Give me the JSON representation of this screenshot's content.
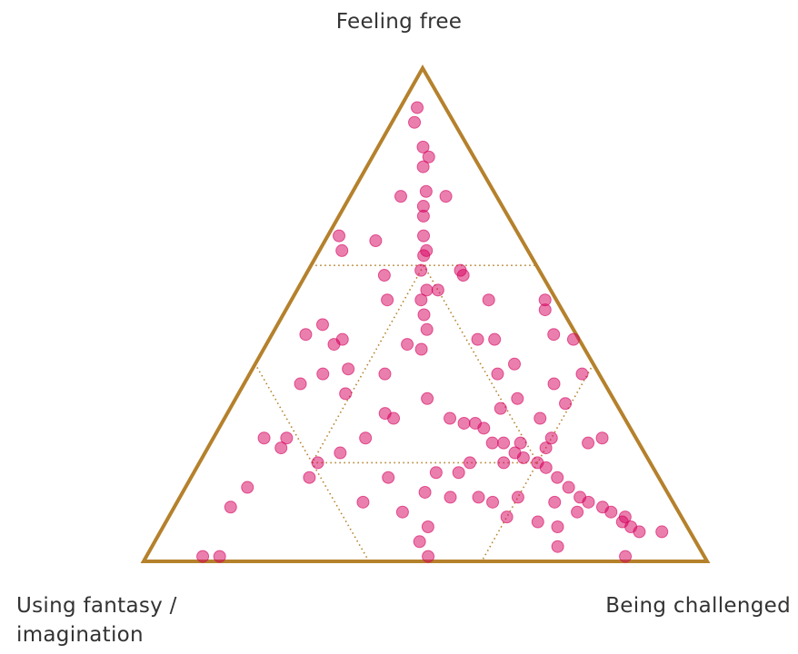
{
  "chart_data": {
    "type": "ternary",
    "axes": {
      "top": "Feeling free",
      "left": "Using fantasy / imagination",
      "right": "Being challenged"
    },
    "ticks": [
      0.2,
      0.6
    ],
    "color": "#d6005e",
    "edge_color": "#b5812c",
    "free": [
      0.92,
      0.89,
      0.84,
      0.8,
      0.75,
      0.72,
      0.7,
      0.66,
      0.62,
      0.59,
      0.55,
      0.5,
      0.47,
      0.43,
      0.33,
      0.74,
      0.74,
      0.66,
      0.65,
      0.63,
      0.58,
      0.53,
      0.46,
      0.48,
      0.44,
      0.45,
      0.39,
      0.38,
      0.36,
      0.34,
      0.38,
      0.44,
      0.3,
      0.29,
      0.25,
      0.22,
      0.25,
      0.25,
      0.23,
      0.2,
      0.17,
      0.15,
      0.11,
      0.01,
      0.01,
      0.12,
      0.17,
      0.1,
      0.04,
      0.01,
      0.14,
      0.07,
      0.18,
      0.13,
      0.13,
      0.18,
      0.2,
      0.58,
      0.55,
      0.53,
      0.45,
      0.45,
      0.38,
      0.4,
      0.53,
      0.51,
      0.46,
      0.45,
      0.38,
      0.36,
      0.32,
      0.33,
      0.31,
      0.29,
      0.25,
      0.25,
      0.24,
      0.29,
      0.28,
      0.28,
      0.27,
      0.24,
      0.24,
      0.22,
      0.21,
      0.2,
      0.19,
      0.17,
      0.15,
      0.13,
      0.12,
      0.11,
      0.1,
      0.08,
      0.07,
      0.09,
      0.2,
      0.24,
      0.12,
      0.09,
      0.13,
      0.08,
      0.07,
      0.03,
      0.1,
      0.01,
      0.06,
      0.06,
      0.23,
      0.12,
      0.82,
      0.63,
      0.59,
      0.53
    ],
    "fantasy": [
      0.05,
      0.07,
      0.08,
      0.1,
      0.12,
      0.14,
      0.15,
      0.17,
      0.19,
      0.21,
      0.22,
      0.25,
      0.26,
      0.29,
      0.33,
      0.17,
      0.09,
      0.32,
      0.26,
      0.33,
      0.28,
      0.3,
      0.48,
      0.44,
      0.44,
      0.42,
      0.44,
      0.49,
      0.54,
      0.47,
      0.38,
      0.31,
      0.42,
      0.41,
      0.48,
      0.54,
      0.62,
      0.66,
      0.64,
      0.59,
      0.62,
      0.74,
      0.79,
      0.89,
      0.86,
      0.55,
      0.48,
      0.49,
      0.49,
      0.49,
      0.43,
      0.46,
      0.39,
      0.39,
      0.34,
      0.35,
      0.32,
      0.14,
      0.2,
      0.12,
      0.18,
      0.15,
      0.18,
      0.14,
      0.02,
      0.03,
      0.04,
      0.01,
      0.03,
      0.09,
      0.09,
      0.17,
      0.21,
      0.15,
      0.15,
      0.06,
      0.09,
      0.31,
      0.29,
      0.27,
      0.26,
      0.26,
      0.24,
      0.23,
      0.22,
      0.2,
      0.19,
      0.18,
      0.17,
      0.16,
      0.15,
      0.13,
      0.12,
      0.11,
      0.1,
      0.1,
      0.26,
      0.21,
      0.32,
      0.31,
      0.27,
      0.26,
      0.23,
      0.25,
      0.18,
      0.14,
      0.09,
      0.05,
      0.17,
      0.21,
      0.08,
      0.18,
      0.14,
      0.24
    ],
    "challenged": [
      0.03,
      0.04,
      0.08,
      0.1,
      0.13,
      0.14,
      0.15,
      0.17,
      0.19,
      0.2,
      0.23,
      0.25,
      0.27,
      0.28,
      0.34,
      0.09,
      0.17,
      0.02,
      0.09,
      0.04,
      0.14,
      0.17,
      0.06,
      0.08,
      0.12,
      0.13,
      0.17,
      0.13,
      0.1,
      0.19,
      0.24,
      0.25,
      0.28,
      0.3,
      0.27,
      0.24,
      0.13,
      0.09,
      0.13,
      0.21,
      0.21,
      0.11,
      0.1,
      0.1,
      0.13,
      0.33,
      0.35,
      0.41,
      0.47,
      0.5,
      0.43,
      0.47,
      0.43,
      0.48,
      0.53,
      0.47,
      0.48,
      0.28,
      0.25,
      0.35,
      0.37,
      0.4,
      0.44,
      0.46,
      0.45,
      0.46,
      0.5,
      0.54,
      0.59,
      0.55,
      0.59,
      0.5,
      0.48,
      0.56,
      0.6,
      0.69,
      0.67,
      0.4,
      0.43,
      0.45,
      0.47,
      0.5,
      0.52,
      0.55,
      0.57,
      0.6,
      0.62,
      0.65,
      0.68,
      0.71,
      0.73,
      0.76,
      0.78,
      0.81,
      0.83,
      0.81,
      0.54,
      0.55,
      0.56,
      0.6,
      0.6,
      0.66,
      0.7,
      0.72,
      0.72,
      0.85,
      0.85,
      0.89,
      0.6,
      0.67,
      0.1,
      0.19,
      0.27,
      0.23
    ]
  }
}
